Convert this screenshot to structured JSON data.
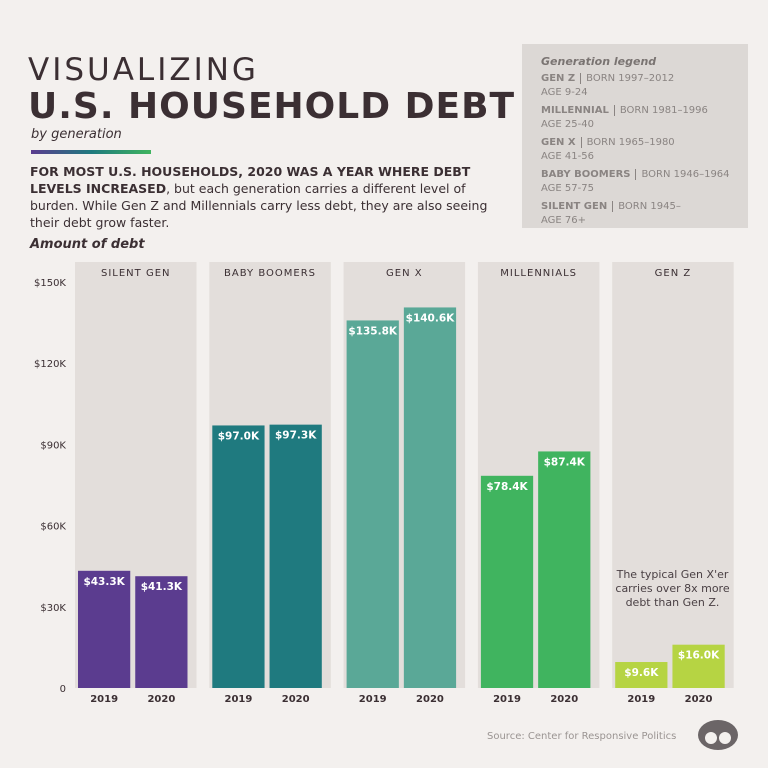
{
  "header": {
    "title_top": "VISUALIZING",
    "title_main": "U.S. HOUSEHOLD DEBT",
    "subtitle": "by generation",
    "intro_bold": "FOR MOST U.S. HOUSEHOLDS, 2020 WAS A YEAR WHERE DEBT LEVELS INCREASED",
    "intro_rest": ", but each generation carries a different level of burden. While Gen Z and Millennials carry less debt, they are also seeing their debt grow faster."
  },
  "legend": {
    "title": "Generation legend",
    "items": [
      {
        "name": "GEN Z",
        "born": "BORN 1997–2012",
        "age": "AGE 9-24"
      },
      {
        "name": "MILLENNIAL",
        "born": "BORN 1981–1996",
        "age": "AGE 25-40"
      },
      {
        "name": "GEN X",
        "born": "BORN 1965–1980",
        "age": "AGE 41-56"
      },
      {
        "name": "BABY BOOMERS",
        "born": "BORN 1946–1964",
        "age": "AGE 57-75"
      },
      {
        "name": "SILENT GEN",
        "born": "BORN 1945–",
        "age": "AGE 76+"
      }
    ]
  },
  "chart_data": {
    "type": "bar",
    "y_label": "Amount of debt",
    "ylim": [
      0,
      150000
    ],
    "yticks": [
      0,
      {
        "value": 30000,
        "label": "$30K"
      },
      {
        "value": 60000,
        "label": "$60K"
      },
      {
        "value": 90000,
        "label": "$90K"
      },
      {
        "value": 120000,
        "label": "$120K"
      },
      {
        "value": 150000,
        "label": "$150K"
      }
    ],
    "groups": [
      {
        "name": "SILENT GEN",
        "color": "#5b3c8f",
        "categories": [
          "2019",
          "2020"
        ],
        "values": [
          43300,
          41300
        ],
        "value_labels": [
          "$43.3K",
          "$41.3K"
        ]
      },
      {
        "name": "BABY BOOMERS",
        "color": "#1f7a7f",
        "categories": [
          "2019",
          "2020"
        ],
        "values": [
          97000,
          97300
        ],
        "value_labels": [
          "$97.0K",
          "$97.3K"
        ]
      },
      {
        "name": "GEN X",
        "color": "#5aa897",
        "categories": [
          "2019",
          "2020"
        ],
        "values": [
          135800,
          140600
        ],
        "value_labels": [
          "$135.8K",
          "$140.6K"
        ]
      },
      {
        "name": "MILLENNIALS",
        "color": "#40b45f",
        "categories": [
          "2019",
          "2020"
        ],
        "values": [
          78400,
          87400
        ],
        "value_labels": [
          "$78.4K",
          "$87.4K"
        ]
      },
      {
        "name": "GEN Z",
        "color": "#b6d443",
        "categories": [
          "2019",
          "2020"
        ],
        "values": [
          9600,
          16000
        ],
        "value_labels": [
          "$9.6K",
          "$16.0K"
        ]
      }
    ],
    "annotation": "The typical Gen X'er carries over 8x more debt than Gen Z."
  },
  "source": "Source: Center for Responsive Politics"
}
